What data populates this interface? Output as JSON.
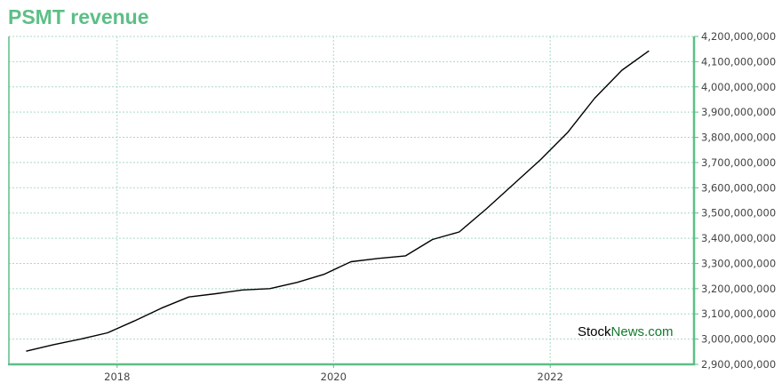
{
  "colors": {
    "accent": "#5cbf86",
    "grid": "#a9d9c4",
    "line": "#000000",
    "watermark_part1": "#000000",
    "watermark_part2": "#137a2f"
  },
  "watermark": {
    "part1": "Stock",
    "part2": "News.com"
  },
  "chart_data": {
    "type": "line",
    "title": "PSMT revenue",
    "xlabel": "",
    "ylabel": "",
    "x_ticks": [
      "2018",
      "2020",
      "2022"
    ],
    "y_ticks": [
      2900000000,
      3000000000,
      3100000000,
      3200000000,
      3300000000,
      3400000000,
      3500000000,
      3600000000,
      3700000000,
      3800000000,
      3900000000,
      4000000000,
      4100000000,
      4200000000
    ],
    "y_tick_labels": [
      "2,900,000,000",
      "3,000,000,000",
      "3,100,000,000",
      "3,200,000,000",
      "3,300,000,000",
      "3,400,000,000",
      "3,500,000,000",
      "3,600,000,000",
      "3,700,000,000",
      "3,800,000,000",
      "3,900,000,000",
      "4,000,000,000",
      "4,100,000,000",
      "4,200,000,000"
    ],
    "xlim": [
      "2017-01-01",
      "2023-05-01"
    ],
    "ylim": [
      2900000000,
      4200000000
    ],
    "grid": true,
    "y_axis_side": "right",
    "series": [
      {
        "x": [
          "2017-02-28",
          "2017-05-31",
          "2017-08-31",
          "2017-11-30",
          "2018-02-28",
          "2018-05-31",
          "2018-08-31",
          "2018-11-30",
          "2019-02-28",
          "2019-05-31",
          "2019-08-31",
          "2019-11-30",
          "2020-02-29",
          "2020-05-31",
          "2020-08-31",
          "2020-11-30",
          "2021-02-28",
          "2021-05-31",
          "2021-08-31",
          "2021-11-30",
          "2022-02-28",
          "2022-05-31",
          "2022-08-31",
          "2022-11-30"
        ],
        "values": [
          2952000000,
          2978000000,
          3000000000,
          3025000000,
          3072000000,
          3123000000,
          3167000000,
          3180000000,
          3195000000,
          3200000000,
          3225000000,
          3257000000,
          3307000000,
          3320000000,
          3330000000,
          3395000000,
          3425000000,
          3517000000,
          3615000000,
          3712000000,
          3818000000,
          3955000000,
          4066000000,
          4143000000
        ]
      }
    ]
  }
}
